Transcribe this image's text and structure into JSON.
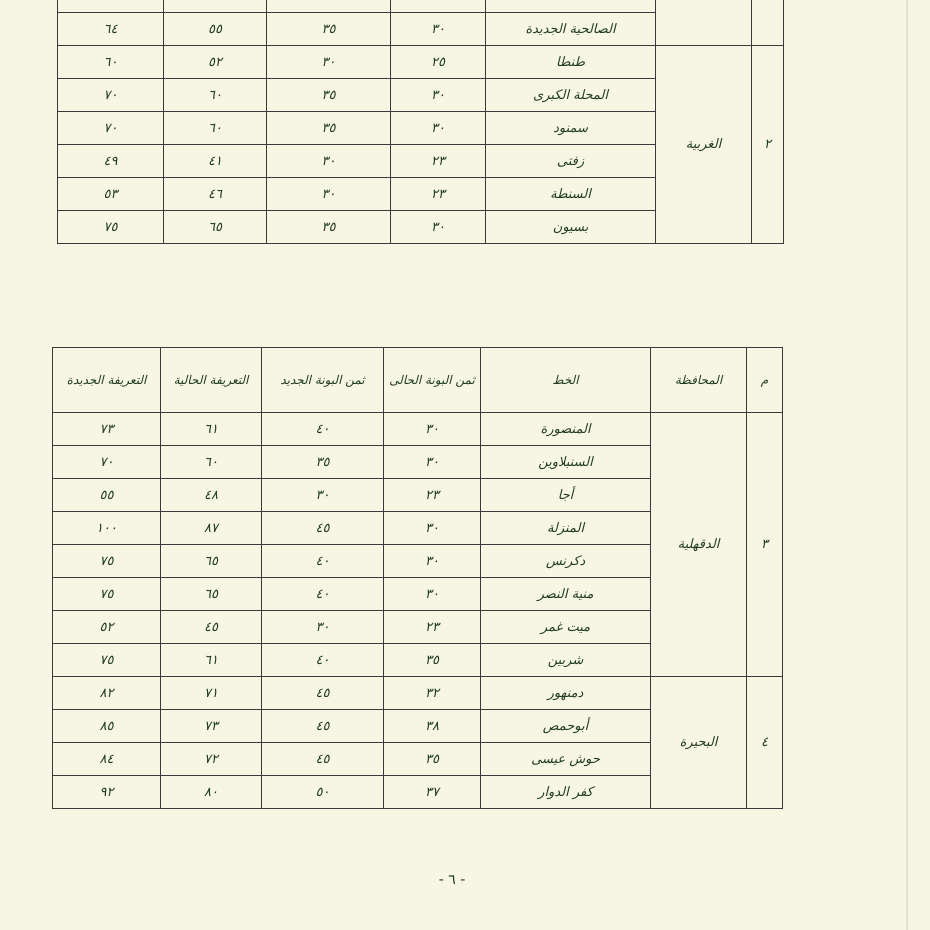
{
  "top_table": {
    "rows_before": [
      [
        "الصالحية الجديدة",
        "٣٠",
        "٣٥",
        "٥٥",
        "٦٤"
      ]
    ],
    "groups": [
      {
        "number": "٢",
        "governorate": "الغربية",
        "rows": [
          [
            "طنطا",
            "٢٥",
            "٣٠",
            "٥٢",
            "٦٠"
          ],
          [
            "المحلة الكبرى",
            "٣٠",
            "٣٥",
            "٦٠",
            "٧٠"
          ],
          [
            "سمنود",
            "٣٠",
            "٣٥",
            "٦٠",
            "٧٠"
          ],
          [
            "زفتى",
            "٢٣",
            "٣٠",
            "٤١",
            "٤٩"
          ],
          [
            "السنطة",
            "٢٣",
            "٣٠",
            "٤٦",
            "٥٣"
          ],
          [
            "بسيون",
            "٣٠",
            "٣٥",
            "٦٥",
            "٧٥"
          ]
        ]
      }
    ]
  },
  "bottom_table": {
    "header": [
      "م",
      "المحافظة",
      "الخط",
      "ثمن البونة الحالى",
      "ثمن البونة الجديد",
      "التعريفة الحالية",
      "التعريفة الجديدة"
    ],
    "groups": [
      {
        "number": "٣",
        "governorate": "الدقهلية",
        "rows": [
          [
            "المنصورة",
            "٣٠",
            "٤٠",
            "٦١",
            "٧٣"
          ],
          [
            "السنبلاوين",
            "٣٠",
            "٣٥",
            "٦٠",
            "٧٠"
          ],
          [
            "أجا",
            "٢٣",
            "٣٠",
            "٤٨",
            "٥٥"
          ],
          [
            "المنزلة",
            "٣٠",
            "٤٥",
            "٨٧",
            "١٠٠"
          ],
          [
            "دكرنس",
            "٣٠",
            "٤٠",
            "٦٥",
            "٧٥"
          ],
          [
            "منية النصر",
            "٣٠",
            "٤٠",
            "٦٥",
            "٧٥"
          ],
          [
            "ميت غمر",
            "٢٣",
            "٣٠",
            "٤٥",
            "٥٢"
          ],
          [
            "شربين",
            "٣٥",
            "٤٠",
            "٦١",
            "٧٥"
          ]
        ]
      },
      {
        "number": "٤",
        "governorate": "البحيرة",
        "rows": [
          [
            "دمنهور",
            "٣٢",
            "٤٥",
            "٧١",
            "٨٢"
          ],
          [
            "أبوحمص",
            "٣٨",
            "٤٥",
            "٧٣",
            "٨٥"
          ],
          [
            "حوش عيسى",
            "٣٥",
            "٤٥",
            "٧٢",
            "٨٤"
          ],
          [
            "كفر الدوار",
            "٣٧",
            "٥٠",
            "٨٠",
            "٩٢"
          ]
        ]
      }
    ]
  },
  "footer": {
    "page_number": "- ٦ -"
  }
}
